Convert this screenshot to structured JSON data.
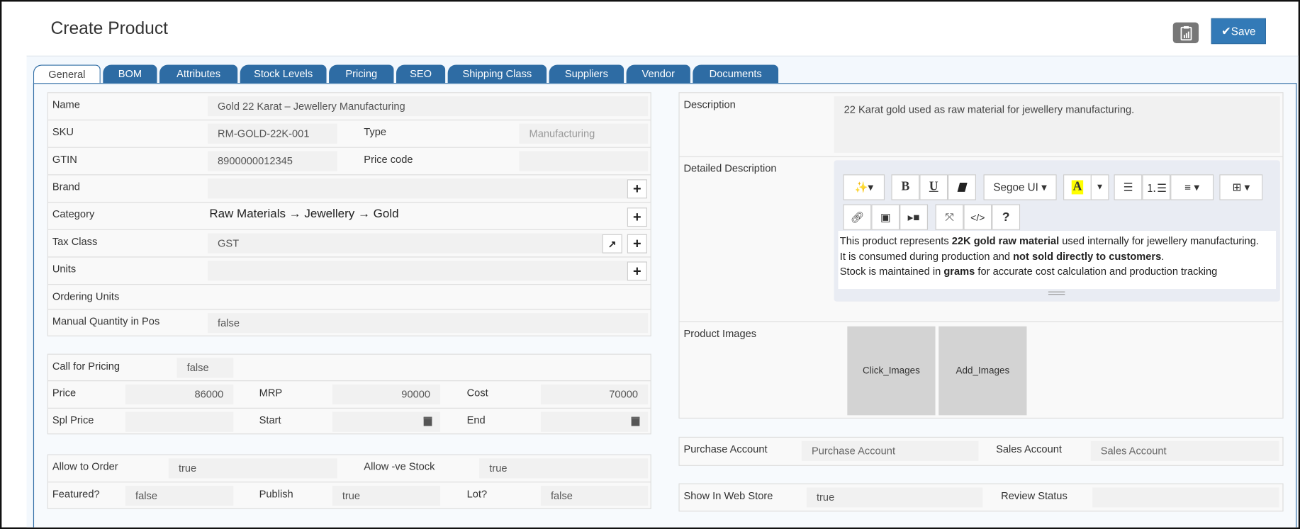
{
  "header": {
    "title": "Create Product",
    "report_icon": "clipboard-chart-icon",
    "save_label": "Save",
    "save_icon": "check-icon",
    "accent": "#337ab7"
  },
  "tabs": [
    {
      "label": "General",
      "active": true
    },
    {
      "label": "BOM"
    },
    {
      "label": "Attributes"
    },
    {
      "label": "Stock Levels"
    },
    {
      "label": "Pricing"
    },
    {
      "label": "SEO"
    },
    {
      "label": "Shipping Class"
    },
    {
      "label": "Suppliers"
    },
    {
      "label": "Vendor"
    },
    {
      "label": "Documents"
    }
  ],
  "general": {
    "name": {
      "label": "Name",
      "value": "Gold 22 Karat – Jewellery Manufacturing"
    },
    "sku": {
      "label": "SKU",
      "value": "RM-GOLD-22K-001"
    },
    "type": {
      "label": "Type",
      "value": "Manufacturing"
    },
    "gtin": {
      "label": "GTIN",
      "value": "8900000012345"
    },
    "price_code": {
      "label": "Price code",
      "value": ""
    },
    "brand": {
      "label": "Brand",
      "value": ""
    },
    "category": {
      "label": "Category",
      "value": "Raw Materials → Jewellery → Gold"
    },
    "tax_class": {
      "label": "Tax Class",
      "value": "GST"
    },
    "units": {
      "label": "Units",
      "value": ""
    },
    "ordering_units": {
      "label": "Ordering Units"
    },
    "manual_qty": {
      "label": "Manual Quantity in Pos",
      "value": "false"
    }
  },
  "pricing": {
    "call_for_pricing": {
      "label": "Call for Pricing",
      "value": "false"
    },
    "price": {
      "label": "Price",
      "value": "86000"
    },
    "mrp": {
      "label": "MRP",
      "value": "90000"
    },
    "cost": {
      "label": "Cost",
      "value": "70000"
    },
    "spl_price": {
      "label": "Spl Price",
      "value": ""
    },
    "start": {
      "label": "Start",
      "value": ""
    },
    "end": {
      "label": "End",
      "value": ""
    }
  },
  "flags": {
    "allow_to_order": {
      "label": "Allow to Order",
      "value": "true"
    },
    "allow_neg_stock": {
      "label": "Allow -ve Stock",
      "value": "true"
    },
    "featured": {
      "label": "Featured?",
      "value": "false"
    },
    "publish": {
      "label": "Publish",
      "value": "true"
    },
    "lot": {
      "label": "Lot?",
      "value": "false"
    }
  },
  "description": {
    "label": "Description",
    "value": "22 Karat gold used as raw material for jewellery manufacturing."
  },
  "detailed_description": {
    "label": "Detailed Description",
    "font": "Segoe UI",
    "highlight_color": "#ffff00",
    "lines": [
      [
        "This product represents ",
        "22K gold raw material",
        " used internally for jewellery manufacturing."
      ],
      [
        "It is consumed during production and ",
        "not sold directly to customers",
        "."
      ],
      [
        "Stock is maintained in ",
        "grams",
        " for accurate cost calculation and production tracking"
      ]
    ]
  },
  "product_images": {
    "label": "Product Images",
    "click": "Click_Images",
    "add": "Add_Images"
  },
  "accounts": {
    "purchase_label": "Purchase Account",
    "purchase_placeholder": "Purchase Account",
    "sales_label": "Sales Account",
    "sales_placeholder": "Sales Account"
  },
  "webstore": {
    "label": "Show In Web Store",
    "value": "true",
    "review_label": "Review Status",
    "review_value": ""
  }
}
